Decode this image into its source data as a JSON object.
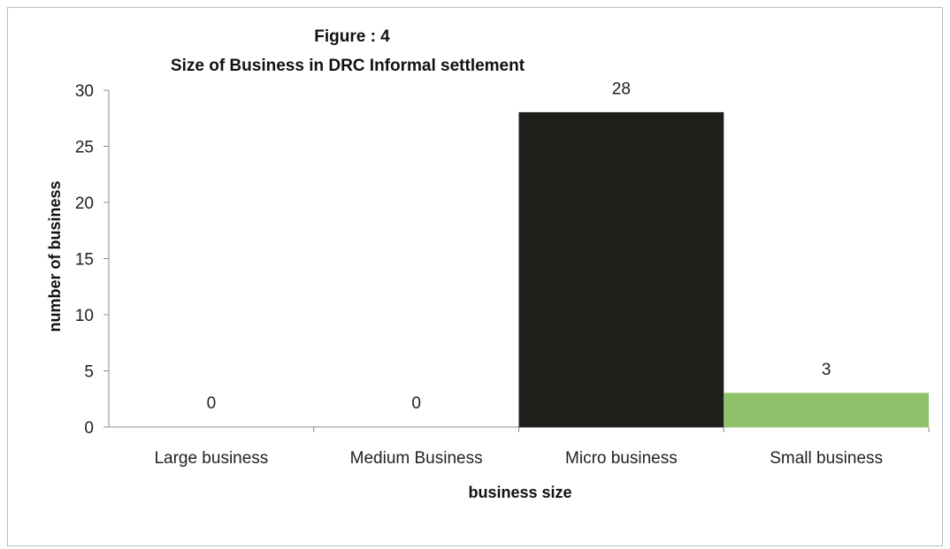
{
  "chart_data": {
    "type": "bar",
    "title": "Figure : 4",
    "subtitle": "Size of Business in DRC Informal settlement",
    "xlabel": "business size",
    "ylabel": "number of business",
    "categories": [
      "Large business",
      "Medium Business",
      "Micro business",
      "Small business"
    ],
    "values": [
      0,
      0,
      28,
      3
    ],
    "data_labels": [
      "0",
      "0",
      "28",
      "3"
    ],
    "bar_colors": [
      "#222222",
      "#222222",
      "#1e1e1b",
      "#8dc16a"
    ],
    "ylim": [
      0,
      30
    ],
    "yticks": [
      0,
      5,
      10,
      15,
      20,
      25,
      30
    ],
    "grid": false,
    "legend": "none"
  }
}
